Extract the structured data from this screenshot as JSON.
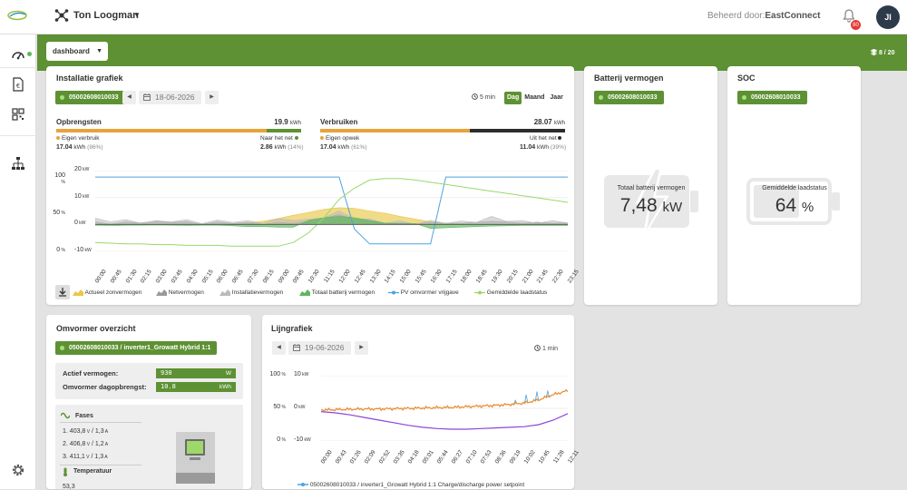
{
  "header": {
    "user_name": "Ton Loogman",
    "managed_prefix": "Beheerd door:",
    "managed_by": "EastConnect",
    "notification_count": "80",
    "avatar_initials": "JI"
  },
  "toolbar": {
    "dashboard_label": "dashboard",
    "page_indicator": "8 / 20"
  },
  "install_chart": {
    "title": "Installatie grafiek",
    "device_id": "05002608010033",
    "date": "18-06-2026",
    "interval": "5 min",
    "periods": [
      "Dag",
      "Maand",
      "Jaar"
    ],
    "active_period": "Dag",
    "opbrengsten": {
      "title": "Opbrengsten",
      "total": "19.9",
      "total_unit": "kWh",
      "left_label": "Eigen verbruik",
      "left_value": "17.04",
      "left_unit": "kWh",
      "left_pct": "(86%)",
      "left_fraction": 0.86,
      "right_label": "Naar het net",
      "right_value": "2.86",
      "right_unit": "kWh",
      "right_pct": "(14%)"
    },
    "verbruiken": {
      "title": "Verbruiken",
      "total": "28.07",
      "total_unit": "kWh",
      "left_label": "Eigen opwek",
      "left_value": "17.04",
      "left_unit": "kWh",
      "left_pct": "(61%)",
      "left_fraction": 0.61,
      "right_label": "Uit het net",
      "right_value": "11.04",
      "right_unit": "kWh",
      "right_pct": "(39%)"
    },
    "y_pct_labels": [
      "100",
      "50",
      "0"
    ],
    "y_pct_unit": "%",
    "y_kw_labels": [
      "20",
      "10",
      "0",
      "-10"
    ],
    "y_kw_unit": "kW",
    "x_labels": [
      "00:00",
      "00:45",
      "01:30",
      "02:15",
      "03:00",
      "03:45",
      "04:30",
      "05:15",
      "06:00",
      "06:45",
      "07:30",
      "08:15",
      "09:00",
      "09:45",
      "10:30",
      "11:15",
      "12:00",
      "12:45",
      "13:30",
      "14:15",
      "15:00",
      "15:45",
      "16:30",
      "17:15",
      "18:00",
      "18:45",
      "19:30",
      "20:15",
      "21:00",
      "21:45",
      "22:30",
      "23:15"
    ],
    "legend": [
      {
        "label": "Actueel zonvermogen",
        "color": "#e8c84a",
        "icon": "area-icon"
      },
      {
        "label": "Netvermogen",
        "color": "#999999",
        "icon": "area-icon"
      },
      {
        "label": "Installatievermogen",
        "color": "#bbbbbb",
        "icon": "area-icon"
      },
      {
        "label": "Totaal batterij vermogen",
        "color": "#5cb85c",
        "icon": "area-icon"
      },
      {
        "label": "PV omvormer vrijgave",
        "color": "#4da3e0",
        "icon": "line-icon"
      },
      {
        "label": "Gemiddelde laadstatus",
        "color": "#9ad86a",
        "icon": "line-icon"
      }
    ]
  },
  "battery": {
    "title": "Batterij vermogen",
    "device_id": "05002608010033",
    "label": "Totaal batterij vermogen",
    "value": "7,48",
    "unit": "kW"
  },
  "soc": {
    "title": "SOC",
    "device_id": "05002608010033",
    "label": "Gemiddelde laadstatus",
    "value": "64",
    "unit": "%"
  },
  "inverter": {
    "title": "Omvormer overzicht",
    "device_label": "05002608010033 / inverter1_Growatt Hybrid 1:1",
    "active_power_label": "Actief vermogen:",
    "active_power_value": "930",
    "active_power_unit": "W",
    "day_yield_label": "Omvormer dagopbrengst:",
    "day_yield_value": "10.8",
    "day_yield_unit": "kWh",
    "phases_title": "Fases",
    "phases": [
      {
        "n": "1.",
        "v": "403,8",
        "vu": "V",
        "a": "1,3",
        "au": "A"
      },
      {
        "n": "2.",
        "v": "406,8",
        "vu": "V",
        "a": "1,2",
        "au": "A"
      },
      {
        "n": "3.",
        "v": "411,1",
        "vu": "V",
        "a": "1,3",
        "au": "A"
      }
    ],
    "temp_title": "Temperatuur",
    "temp_value": "53,3"
  },
  "line_chart": {
    "title": "Lijngrafiek",
    "date": "19-06-2026",
    "interval": "1 min",
    "y_pct_labels": [
      "100",
      "50",
      "0"
    ],
    "y_pct_unit": "%",
    "y_kw_labels": [
      "10",
      "0",
      "-10"
    ],
    "y_kw_unit": "kW",
    "x_labels": [
      "00:00",
      "00:43",
      "01:26",
      "02:09",
      "02:52",
      "03:35",
      "04:18",
      "05:01",
      "05:44",
      "06:27",
      "07:10",
      "07:53",
      "08:36",
      "09:19",
      "10:02",
      "10:45",
      "11:28",
      "12:11"
    ],
    "legend_label": "05002608010033 / inverter1_Growatt Hybrid 1:1 Charge/discharge power setpoint"
  },
  "chart_data": [
    {
      "type": "area",
      "title": "Installatie grafiek",
      "x": [
        "00:00",
        "00:45",
        "01:30",
        "02:15",
        "03:00",
        "03:45",
        "04:30",
        "05:15",
        "06:00",
        "06:45",
        "07:30",
        "08:15",
        "09:00",
        "09:45",
        "10:30",
        "11:15",
        "12:00",
        "12:45",
        "13:30",
        "14:15",
        "15:00",
        "15:45",
        "16:30",
        "17:15",
        "18:00",
        "18:45",
        "19:30",
        "20:15",
        "21:00",
        "21:45",
        "22:30",
        "23:15"
      ],
      "ylim_kw": [
        -10,
        20
      ],
      "ylim_pct": [
        0,
        100
      ],
      "series": [
        {
          "name": "Actueel zonvermogen",
          "axis": "kW",
          "values": [
            0,
            0,
            0,
            0,
            0,
            0,
            0,
            0,
            0,
            0.2,
            0.6,
            1.2,
            2.2,
            3.4,
            4.5,
            5.6,
            6.2,
            6.0,
            5.0,
            4.2,
            3.0,
            2.0,
            1.0,
            0.3,
            0,
            0,
            0,
            0,
            0,
            0,
            0,
            0
          ]
        },
        {
          "name": "Netvermogen",
          "axis": "kW",
          "values": [
            0.5,
            0.6,
            0.4,
            1.0,
            0.8,
            1.2,
            0.6,
            0.4,
            0.5,
            0.7,
            0.4,
            0.3,
            0.5,
            0.6,
            1.0,
            2.5,
            3.5,
            2.0,
            1.0,
            0.5,
            0.4,
            0.3,
            0.6,
            0.5,
            0.4,
            0.8,
            1.2,
            0.9,
            0.5,
            0.7,
            0.6,
            0.4
          ]
        },
        {
          "name": "Installatievermogen",
          "axis": "kW",
          "values": [
            1.8,
            1.5,
            1.2,
            1.0,
            0.8,
            1.5,
            1.2,
            0.9,
            1.0,
            1.4,
            0.8,
            1.0,
            1.6,
            2.0,
            1.4,
            3.0,
            4.5,
            2.5,
            1.5,
            1.0,
            0.8,
            0.6,
            1.0,
            0.9,
            0.8,
            1.2,
            2.5,
            1.6,
            1.0,
            0.8,
            1.0,
            0.9
          ]
        },
        {
          "name": "Totaal batterij vermogen",
          "axis": "kW",
          "values": [
            -0.3,
            -0.4,
            -0.3,
            -0.3,
            -0.2,
            -0.3,
            -0.4,
            -0.3,
            -0.3,
            -0.5,
            -0.8,
            -0.8,
            -1.0,
            -1.0,
            1.5,
            2.5,
            3.0,
            2.5,
            1.5,
            0.5,
            0.3,
            0.3,
            -1.5,
            -1.2,
            -1.0,
            -0.8,
            -0.6,
            -0.5,
            -0.4,
            -0.4,
            -0.4,
            -0.4
          ]
        },
        {
          "name": "PV omvormer vrijgave",
          "axis": "%",
          "values": [
            100,
            100,
            100,
            100,
            100,
            100,
            100,
            100,
            100,
            100,
            100,
            100,
            100,
            100,
            100,
            100,
            100,
            30,
            10,
            10,
            10,
            10,
            10,
            100,
            100,
            100,
            100,
            100,
            100,
            100,
            100,
            100
          ]
        },
        {
          "name": "Gemiddelde laadstatus",
          "axis": "%",
          "values": [
            12,
            11,
            10,
            10,
            9,
            9,
            8,
            8,
            8,
            7,
            7,
            7,
            7,
            12,
            25,
            45,
            70,
            85,
            96,
            98,
            98,
            96,
            93,
            90,
            87,
            84,
            81,
            78,
            75,
            72,
            69,
            66
          ]
        }
      ]
    },
    {
      "type": "line",
      "title": "Lijngrafiek",
      "x": [
        "00:00",
        "00:43",
        "01:26",
        "02:09",
        "02:52",
        "03:35",
        "04:18",
        "05:01",
        "05:44",
        "06:27",
        "07:10",
        "07:53",
        "08:36",
        "09:19",
        "10:02",
        "10:45",
        "11:28",
        "12:11"
      ],
      "ylim_kw": [
        -10,
        10
      ],
      "ylim_pct": [
        0,
        100
      ],
      "series": [
        {
          "name": "05002608010033 / inverter1_Growatt Hybrid 1:1 Charge/discharge power setpoint",
          "axis": "kW",
          "values": [
            -0.5,
            -0.4,
            -0.3,
            -0.2,
            -0.2,
            -0.1,
            0,
            0.1,
            0.2,
            0.3,
            0.5,
            0.7,
            0.9,
            1.2,
            1.6,
            2.6,
            4.2,
            5.4
          ]
        },
        {
          "name": "",
          "axis": "%",
          "values": [
            45,
            43,
            40,
            36,
            32,
            28,
            24,
            21,
            19,
            18,
            18,
            19,
            20,
            21,
            22,
            25,
            32,
            42
          ]
        }
      ]
    }
  ]
}
